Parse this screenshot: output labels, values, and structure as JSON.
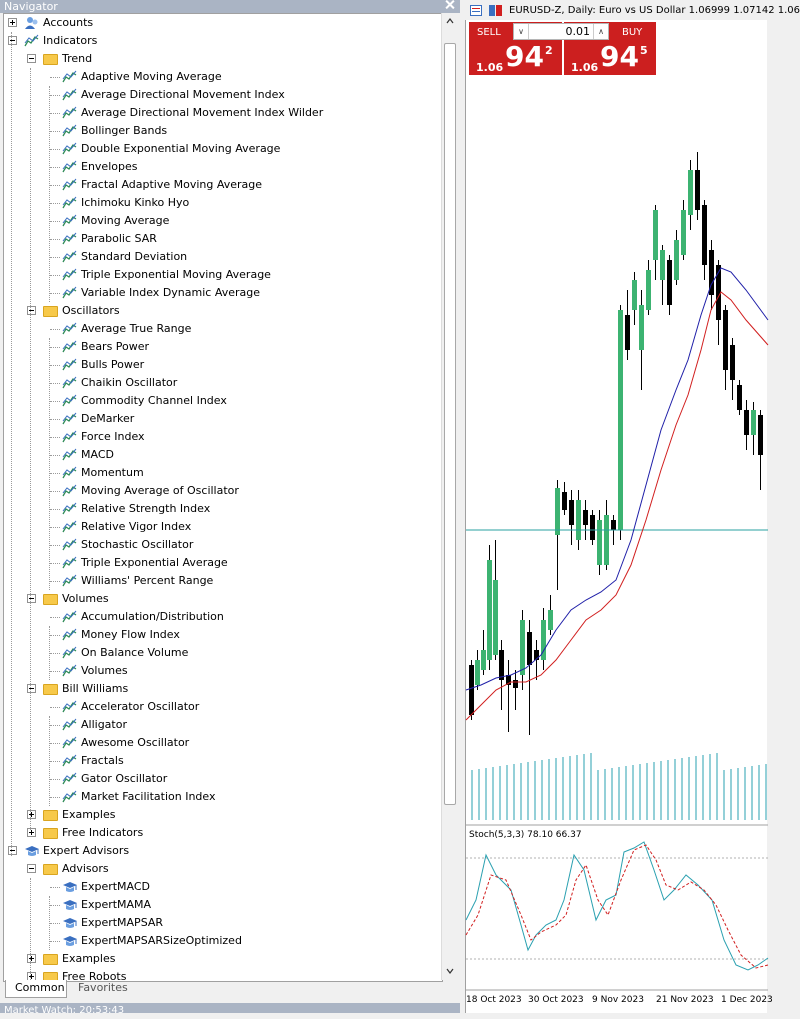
{
  "navigator": {
    "title": "Navigator",
    "tree": [
      {
        "label": "Accounts",
        "level": 0,
        "icon": "accounts-icon",
        "expander": "plus"
      },
      {
        "label": "Indicators",
        "level": 0,
        "icon": "indicator-icon",
        "expander": "minus"
      },
      {
        "label": "Trend",
        "level": 1,
        "icon": "folder-icon",
        "expander": "minus"
      },
      {
        "label": "Adaptive Moving Average",
        "level": 2,
        "icon": "indicator-icon"
      },
      {
        "label": "Average Directional Movement Index",
        "level": 2,
        "icon": "indicator-icon"
      },
      {
        "label": "Average Directional Movement Index Wilder",
        "level": 2,
        "icon": "indicator-icon"
      },
      {
        "label": "Bollinger Bands",
        "level": 2,
        "icon": "indicator-icon"
      },
      {
        "label": "Double Exponential Moving Average",
        "level": 2,
        "icon": "indicator-icon"
      },
      {
        "label": "Envelopes",
        "level": 2,
        "icon": "indicator-icon"
      },
      {
        "label": "Fractal Adaptive Moving Average",
        "level": 2,
        "icon": "indicator-icon"
      },
      {
        "label": "Ichimoku Kinko Hyo",
        "level": 2,
        "icon": "indicator-icon"
      },
      {
        "label": "Moving Average",
        "level": 2,
        "icon": "indicator-icon"
      },
      {
        "label": "Parabolic SAR",
        "level": 2,
        "icon": "indicator-icon"
      },
      {
        "label": "Standard Deviation",
        "level": 2,
        "icon": "indicator-icon"
      },
      {
        "label": "Triple Exponential Moving Average",
        "level": 2,
        "icon": "indicator-icon"
      },
      {
        "label": "Variable Index Dynamic Average",
        "level": 2,
        "icon": "indicator-icon"
      },
      {
        "label": "Oscillators",
        "level": 1,
        "icon": "folder-icon",
        "expander": "minus"
      },
      {
        "label": "Average True Range",
        "level": 2,
        "icon": "indicator-icon"
      },
      {
        "label": "Bears Power",
        "level": 2,
        "icon": "indicator-icon"
      },
      {
        "label": "Bulls Power",
        "level": 2,
        "icon": "indicator-icon"
      },
      {
        "label": "Chaikin Oscillator",
        "level": 2,
        "icon": "indicator-icon"
      },
      {
        "label": "Commodity Channel Index",
        "level": 2,
        "icon": "indicator-icon"
      },
      {
        "label": "DeMarker",
        "level": 2,
        "icon": "indicator-icon"
      },
      {
        "label": "Force Index",
        "level": 2,
        "icon": "indicator-icon"
      },
      {
        "label": "MACD",
        "level": 2,
        "icon": "indicator-icon"
      },
      {
        "label": "Momentum",
        "level": 2,
        "icon": "indicator-icon"
      },
      {
        "label": "Moving Average of Oscillator",
        "level": 2,
        "icon": "indicator-icon"
      },
      {
        "label": "Relative Strength Index",
        "level": 2,
        "icon": "indicator-icon"
      },
      {
        "label": "Relative Vigor Index",
        "level": 2,
        "icon": "indicator-icon"
      },
      {
        "label": "Stochastic Oscillator",
        "level": 2,
        "icon": "indicator-icon"
      },
      {
        "label": "Triple Exponential Average",
        "level": 2,
        "icon": "indicator-icon"
      },
      {
        "label": "Williams' Percent Range",
        "level": 2,
        "icon": "indicator-icon"
      },
      {
        "label": "Volumes",
        "level": 1,
        "icon": "folder-icon",
        "expander": "minus"
      },
      {
        "label": "Accumulation/Distribution",
        "level": 2,
        "icon": "indicator-icon"
      },
      {
        "label": "Money Flow Index",
        "level": 2,
        "icon": "indicator-icon"
      },
      {
        "label": "On Balance Volume",
        "level": 2,
        "icon": "indicator-icon"
      },
      {
        "label": "Volumes",
        "level": 2,
        "icon": "indicator-icon"
      },
      {
        "label": "Bill Williams",
        "level": 1,
        "icon": "folder-icon",
        "expander": "minus"
      },
      {
        "label": "Accelerator Oscillator",
        "level": 2,
        "icon": "indicator-icon"
      },
      {
        "label": "Alligator",
        "level": 2,
        "icon": "indicator-icon"
      },
      {
        "label": "Awesome Oscillator",
        "level": 2,
        "icon": "indicator-icon"
      },
      {
        "label": "Fractals",
        "level": 2,
        "icon": "indicator-icon"
      },
      {
        "label": "Gator Oscillator",
        "level": 2,
        "icon": "indicator-icon"
      },
      {
        "label": "Market Facilitation Index",
        "level": 2,
        "icon": "indicator-icon"
      },
      {
        "label": "Examples",
        "level": 1,
        "icon": "folder-icon",
        "expander": "plus"
      },
      {
        "label": "Free Indicators",
        "level": 1,
        "icon": "folder-icon",
        "expander": "plus"
      },
      {
        "label": "Expert Advisors",
        "level": 0,
        "icon": "expert-icon",
        "expander": "minus"
      },
      {
        "label": "Advisors",
        "level": 1,
        "icon": "folder-icon",
        "expander": "minus"
      },
      {
        "label": "ExpertMACD",
        "level": 2,
        "icon": "expert-icon"
      },
      {
        "label": "ExpertMAMA",
        "level": 2,
        "icon": "expert-icon"
      },
      {
        "label": "ExpertMAPSAR",
        "level": 2,
        "icon": "expert-icon"
      },
      {
        "label": "ExpertMAPSARSizeOptimized",
        "level": 2,
        "icon": "expert-icon"
      },
      {
        "label": "Examples",
        "level": 1,
        "icon": "folder-icon",
        "expander": "plus"
      },
      {
        "label": "Free Robots",
        "level": 1,
        "icon": "folder-icon",
        "expander": "plus"
      }
    ],
    "tabs": {
      "common": "Common",
      "favorites": "Favorites"
    }
  },
  "market_watch": {
    "title": "Market Watch: 20:53:43"
  },
  "chart": {
    "title": "EURUSD-Z, Daily:  Euro vs US Dollar  1.06999 1.07142 1.06",
    "sell_label": "SELL",
    "buy_label": "BUY",
    "lot_value": "0.01",
    "sell_price_prefix": "1.06",
    "sell_price_big": "94",
    "sell_price_sup": "2",
    "buy_price_prefix": "1.06",
    "buy_price_big": "94",
    "buy_price_sup": "5",
    "stoch_label": "Stoch(5,3,3) 78.10 66.37",
    "date_labels": [
      "18 Oct 2023",
      "30 Oct 2023",
      "9 Nov 2023",
      "21 Nov 2023",
      "1 Dec 2023"
    ],
    "colors": {
      "bull": "#3cb371",
      "bear": "#000000",
      "ma_fast": "#1f1fa8",
      "ma_slow": "#d11f1f",
      "volume": "#2aa0b0",
      "stoch_main": "#2aa0b0",
      "stoch_signal": "#d11f1f",
      "trade_button": "#cc1f1f"
    }
  }
}
